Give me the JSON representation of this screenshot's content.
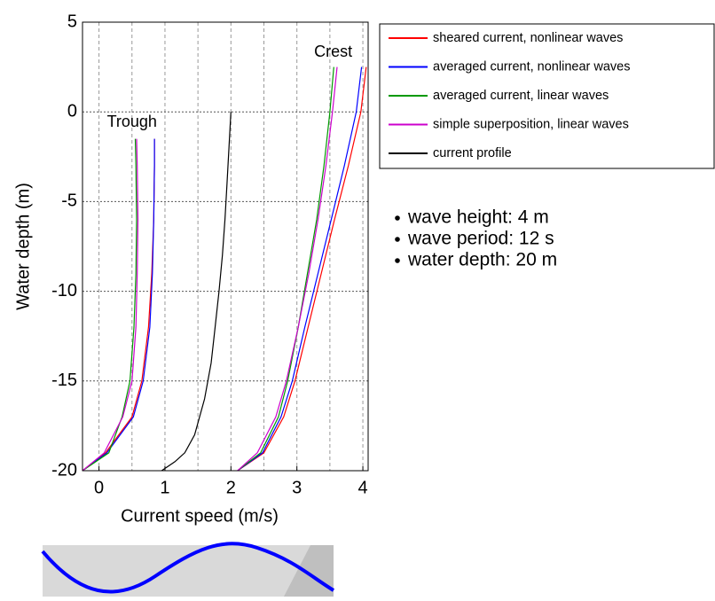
{
  "chart_data": {
    "type": "line",
    "xlabel": "Current speed (m/s)",
    "ylabel": "Water depth (m)",
    "xlim": [
      -0.25,
      4.08
    ],
    "ylim": [
      -20,
      5
    ],
    "xticks": [
      0,
      1,
      2,
      3,
      4
    ],
    "yticks": [
      -20,
      -15,
      -10,
      -5,
      0,
      5
    ],
    "xgrid": [
      0,
      0.5,
      1,
      1.5,
      2,
      2.5,
      3,
      3.5,
      4
    ],
    "grid": true,
    "series": [
      {
        "name": "sheared current, nonlinear waves",
        "color": "#ff0000",
        "x": [
          -0.25,
          0.1,
          0.5,
          0.65,
          0.75,
          0.8,
          0.83,
          0.84,
          0.84,
          null,
          2.1,
          2.5,
          2.8,
          2.97,
          3.17,
          3.37,
          3.57,
          3.78,
          3.97,
          4.05
        ],
        "values": [
          -20,
          -19,
          -17,
          -15,
          -12,
          -9,
          -6,
          -3,
          -1.5,
          null,
          -20,
          -19,
          -17,
          -15,
          -12,
          -9,
          -6,
          -3,
          0,
          2.5
        ]
      },
      {
        "name": "averaged current, nonlinear waves",
        "color": "#0000ff",
        "x": [
          -0.25,
          0.12,
          0.52,
          0.67,
          0.77,
          0.81,
          0.83,
          0.84,
          0.84,
          null,
          2.1,
          2.48,
          2.76,
          2.93,
          3.12,
          3.32,
          3.52,
          3.72,
          3.9,
          3.98
        ],
        "values": [
          -20,
          -19,
          -17,
          -15,
          -12,
          -9,
          -6,
          -3,
          -1.5,
          null,
          -20,
          -19,
          -17,
          -15,
          -12,
          -9,
          -6,
          -3,
          0,
          2.5
        ]
      },
      {
        "name": "averaged current, linear waves",
        "color": "#009900",
        "x": [
          -0.25,
          0.15,
          0.35,
          0.47,
          0.53,
          0.56,
          0.57,
          0.56,
          0.55,
          null,
          2.1,
          2.45,
          2.72,
          2.86,
          3.02,
          3.16,
          3.3,
          3.41,
          3.5,
          3.56
        ],
        "values": [
          -20,
          -19,
          -17,
          -15,
          -12,
          -9,
          -6,
          -3,
          -1.5,
          null,
          -20,
          -19,
          -17,
          -15,
          -12,
          -9,
          -6,
          -3,
          0,
          2.5
        ]
      },
      {
        "name": "simple superposition, linear waves",
        "color": "#cc00cc",
        "x": [
          -0.25,
          0.08,
          0.36,
          0.5,
          0.56,
          0.58,
          0.59,
          0.58,
          0.57,
          null,
          2.1,
          2.4,
          2.68,
          2.84,
          3.02,
          3.18,
          3.32,
          3.44,
          3.54,
          3.61
        ],
        "values": [
          -20,
          -19,
          -17,
          -15,
          -12,
          -9,
          -6,
          -3,
          -1.5,
          null,
          -20,
          -19,
          -17,
          -15,
          -12,
          -9,
          -6,
          -3,
          0,
          2.5
        ]
      },
      {
        "name": "current profile",
        "color": "#000000",
        "x": [
          0.95,
          1.15,
          1.3,
          1.45,
          1.6,
          1.7,
          1.76,
          1.82,
          1.87,
          1.91,
          1.94,
          1.97,
          2.0
        ],
        "values": [
          -20,
          -19.5,
          -19,
          -18,
          -16,
          -14,
          -12,
          -10,
          -8,
          -6,
          -4,
          -2,
          0
        ]
      }
    ],
    "annotations": [
      {
        "text": "Trough",
        "x": 0.5,
        "y": -0.6
      },
      {
        "text": "Crest",
        "x": 3.55,
        "y": 3.3
      }
    ],
    "notes": [
      "wave height: 4 m",
      "wave period: 12 s",
      "water depth: 20 m"
    ]
  }
}
